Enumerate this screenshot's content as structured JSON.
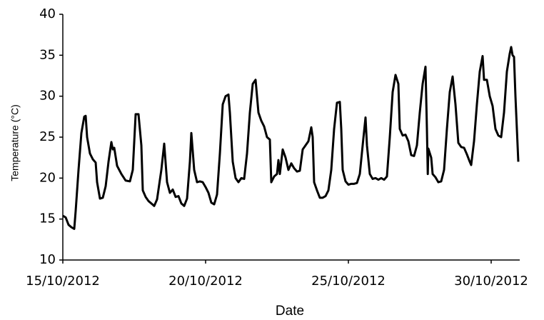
{
  "chart_data": {
    "type": "line",
    "x_label": "Date",
    "y_label": "Temperature (°C)",
    "x": [
      0,
      0.1,
      0.2,
      0.3,
      0.4,
      0.45,
      0.55,
      0.65,
      0.75,
      0.8,
      0.85,
      0.95,
      1.05,
      1.15,
      1.2,
      1.3,
      1.4,
      1.5,
      1.6,
      1.7,
      1.75,
      1.8,
      1.9,
      2.05,
      2.2,
      2.35,
      2.45,
      2.55,
      2.65,
      2.75,
      2.8,
      2.9,
      3.0,
      3.1,
      3.2,
      3.3,
      3.45,
      3.55,
      3.65,
      3.75,
      3.85,
      3.95,
      4.05,
      4.15,
      4.25,
      4.35,
      4.45,
      4.5,
      4.6,
      4.7,
      4.8,
      4.9,
      5.0,
      5.1,
      5.2,
      5.3,
      5.4,
      5.5,
      5.6,
      5.7,
      5.8,
      5.85,
      5.95,
      6.05,
      6.15,
      6.25,
      6.35,
      6.45,
      6.55,
      6.65,
      6.75,
      6.85,
      6.95,
      7.05,
      7.15,
      7.25,
      7.3,
      7.4,
      7.5,
      7.55,
      7.6,
      7.7,
      7.8,
      7.9,
      8.0,
      8.1,
      8.2,
      8.3,
      8.4,
      8.5,
      8.6,
      8.7,
      8.75,
      8.8,
      8.9,
      9.0,
      9.1,
      9.2,
      9.3,
      9.4,
      9.5,
      9.6,
      9.7,
      9.75,
      9.8,
      9.9,
      10.0,
      10.1,
      10.2,
      10.3,
      10.4,
      10.5,
      10.6,
      10.65,
      10.75,
      10.85,
      10.95,
      11.05,
      11.15,
      11.25,
      11.35,
      11.45,
      11.55,
      11.65,
      11.75,
      11.8,
      11.9,
      12.0,
      12.1,
      12.2,
      12.3,
      12.4,
      12.5,
      12.6,
      12.7,
      12.75,
      12.78,
      12.8,
      12.9,
      12.95,
      13.05,
      13.15,
      13.25,
      13.35,
      13.45,
      13.55,
      13.65,
      13.75,
      13.85,
      13.95,
      14.05,
      14.15,
      14.25,
      14.3,
      14.4,
      14.5,
      14.6,
      14.7,
      14.75,
      14.85,
      14.95,
      15.05,
      15.15,
      15.25,
      15.35,
      15.45,
      15.55,
      15.65,
      15.7,
      15.75,
      15.8,
      15.85,
      15.95
    ],
    "series": [
      {
        "color": "#000000",
        "values": [
          15.4,
          15.2,
          14.3,
          14.0,
          13.8,
          16,
          21,
          25.5,
          27.5,
          27.6,
          25,
          23,
          22.3,
          21.9,
          19.5,
          17.5,
          17.6,
          19,
          22,
          24.4,
          23.5,
          23.7,
          21.5,
          20.5,
          19.7,
          19.6,
          21,
          27.8,
          27.8,
          24,
          18.5,
          17.7,
          17.2,
          16.9,
          16.6,
          17.4,
          21,
          24.2,
          19.5,
          18.2,
          18.6,
          17.7,
          17.8,
          16.9,
          16.6,
          17.5,
          22,
          25.5,
          21,
          19.5,
          19.6,
          19.5,
          18.9,
          18.2,
          17.0,
          16.8,
          18,
          23,
          29.0,
          30.0,
          30.2,
          28,
          22,
          20,
          19.5,
          20,
          19.9,
          23,
          28,
          31.5,
          32.0,
          28,
          27,
          26.3,
          25,
          24.7,
          19.5,
          20.2,
          20.5,
          22.2,
          20.5,
          23.5,
          22.5,
          21,
          21.8,
          21.2,
          20.8,
          20.9,
          23.5,
          24,
          24.5,
          26.2,
          25,
          19.5,
          18.5,
          17.6,
          17.6,
          17.8,
          18.5,
          21,
          26,
          29.2,
          29.3,
          26,
          21,
          19.6,
          19.2,
          19.3,
          19.3,
          19.4,
          20.5,
          24,
          27.4,
          24,
          20.5,
          19.9,
          20.0,
          19.8,
          20.0,
          19.8,
          20.2,
          25,
          30.5,
          32.6,
          31.5,
          26,
          25.2,
          25.3,
          24.5,
          22.8,
          22.7,
          24,
          28,
          31.5,
          33.6,
          26,
          20.5,
          23.6,
          22.5,
          20.5,
          20.1,
          19.5,
          19.6,
          21,
          26,
          30.5,
          32.4,
          29,
          24.3,
          23.8,
          23.7,
          22.9,
          22.0,
          21.6,
          24.5,
          29,
          33,
          34.9,
          32,
          32,
          30,
          28.8,
          26,
          25.2,
          25,
          28,
          33,
          35.2,
          36,
          35,
          34.8,
          30,
          22
        ]
      }
    ],
    "xlim": [
      0,
      16
    ],
    "xticks": [
      {
        "value": 0,
        "label": "15/10/2012"
      },
      {
        "value": 5,
        "label": "20/10/2012"
      },
      {
        "value": 10,
        "label": "25/10/2012"
      },
      {
        "value": 15,
        "label": "30/10/2012"
      }
    ],
    "ylim": [
      10,
      40
    ],
    "yticks": [
      10,
      15,
      20,
      25,
      30,
      35,
      40
    ],
    "grid": false
  }
}
